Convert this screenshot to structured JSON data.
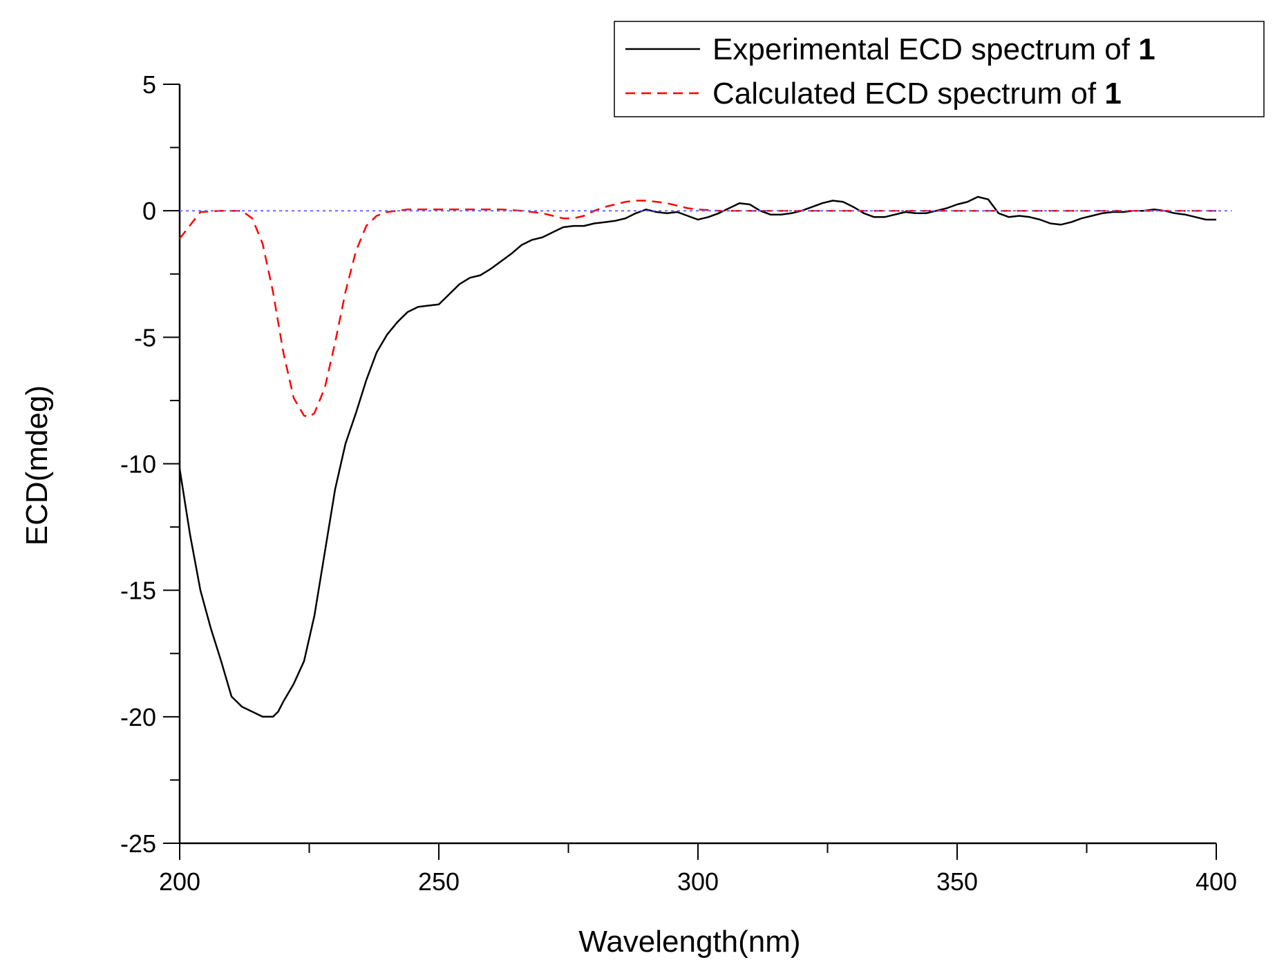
{
  "chart_data": {
    "type": "line",
    "title": "",
    "xlabel": "Wavelength(nm)",
    "ylabel": "ECD(mdeg)",
    "xlim": [
      200,
      400
    ],
    "ylim": [
      -25,
      5
    ],
    "xticks": [
      200,
      250,
      300,
      350,
      400
    ],
    "yticks": [
      5,
      0,
      -5,
      -10,
      -15,
      -20,
      -25
    ],
    "grid": false,
    "legend_position": "top-right",
    "series": [
      {
        "name": "Experimental ECD spectrum of 1",
        "legend_text": "Experimental ECD spectrum of ",
        "legend_bold": "1",
        "color": "#000000",
        "style": "solid",
        "x": [
          200,
          202,
          204,
          206,
          208,
          210,
          212,
          214,
          216,
          218,
          219,
          220,
          222,
          224,
          226,
          228,
          230,
          232,
          234,
          236,
          238,
          240,
          242,
          244,
          246,
          248,
          250,
          252,
          254,
          256,
          258,
          260,
          262,
          264,
          266,
          268,
          270,
          272,
          274,
          276,
          278,
          280,
          282,
          284,
          286,
          288,
          290,
          292,
          294,
          296,
          298,
          300,
          302,
          304,
          306,
          308,
          310,
          312,
          314,
          316,
          318,
          320,
          322,
          324,
          326,
          328,
          330,
          332,
          334,
          336,
          338,
          340,
          342,
          344,
          346,
          348,
          350,
          352,
          354,
          356,
          358,
          360,
          362,
          364,
          366,
          368,
          370,
          372,
          374,
          376,
          378,
          380,
          382,
          384,
          386,
          388,
          390,
          392,
          394,
          396,
          398,
          400
        ],
        "y": [
          -10.2,
          -12.8,
          -15.0,
          -16.5,
          -17.8,
          -19.2,
          -19.6,
          -19.8,
          -20.0,
          -20.0,
          -19.8,
          -19.4,
          -18.7,
          -17.8,
          -16.0,
          -13.5,
          -11.0,
          -9.2,
          -8.0,
          -6.7,
          -5.6,
          -4.9,
          -4.4,
          -4.0,
          -3.8,
          -3.75,
          -3.7,
          -3.3,
          -2.9,
          -2.65,
          -2.55,
          -2.3,
          -2.0,
          -1.7,
          -1.35,
          -1.15,
          -1.05,
          -0.85,
          -0.65,
          -0.6,
          -0.6,
          -0.5,
          -0.45,
          -0.4,
          -0.3,
          -0.1,
          0.05,
          -0.05,
          -0.1,
          -0.05,
          -0.2,
          -0.35,
          -0.25,
          -0.1,
          0.1,
          0.3,
          0.25,
          0.0,
          -0.15,
          -0.15,
          -0.1,
          0.0,
          0.15,
          0.3,
          0.4,
          0.35,
          0.15,
          -0.1,
          -0.25,
          -0.25,
          -0.15,
          -0.05,
          -0.1,
          -0.1,
          0.0,
          0.1,
          0.25,
          0.35,
          0.55,
          0.45,
          -0.1,
          -0.25,
          -0.2,
          -0.25,
          -0.35,
          -0.5,
          -0.55,
          -0.45,
          -0.3,
          -0.2,
          -0.1,
          -0.05,
          -0.05,
          0.0,
          0.0,
          0.05,
          0.0,
          -0.1,
          -0.15,
          -0.25,
          -0.35,
          -0.35
        ]
      },
      {
        "name": "Calculated ECD spectrum of 1",
        "legend_text": "Calculated ECD spectrum of ",
        "legend_bold": "1",
        "color": "#ff0000",
        "style": "dashed",
        "x": [
          200,
          204,
          208,
          212,
          214,
          216,
          218,
          220,
          222,
          224,
          225,
          226,
          228,
          230,
          232,
          234,
          236,
          238,
          240,
          244,
          250,
          256,
          262,
          266,
          270,
          272,
          274,
          276,
          278,
          280,
          282,
          284,
          286,
          288,
          290,
          292,
          294,
          296,
          298,
          300,
          304,
          310,
          320,
          330,
          340,
          350,
          360,
          370,
          380,
          390,
          400
        ],
        "y": [
          -1.1,
          -0.05,
          0.0,
          0.0,
          -0.3,
          -1.3,
          -3.2,
          -5.6,
          -7.4,
          -8.1,
          -8.15,
          -8.0,
          -7.0,
          -5.2,
          -3.2,
          -1.6,
          -0.6,
          -0.2,
          -0.05,
          0.05,
          0.05,
          0.05,
          0.05,
          0.0,
          -0.1,
          -0.2,
          -0.3,
          -0.3,
          -0.2,
          0.0,
          0.15,
          0.25,
          0.35,
          0.4,
          0.4,
          0.35,
          0.3,
          0.2,
          0.1,
          0.05,
          0.0,
          0.0,
          0.0,
          0.0,
          0.0,
          0.0,
          0.0,
          0.0,
          0.0,
          0.0,
          0.0
        ]
      },
      {
        "name": "baseline",
        "color": "#6666ff",
        "style": "dotted",
        "x": [
          200,
          403
        ],
        "y": [
          0,
          0
        ]
      }
    ]
  }
}
